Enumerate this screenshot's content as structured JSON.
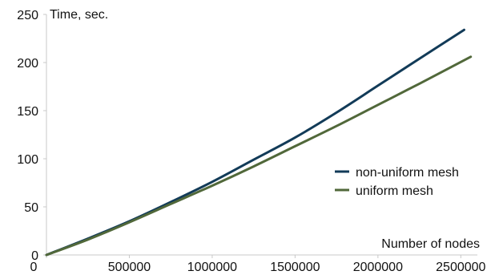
{
  "chart_data": {
    "type": "line",
    "ylabel": "Time, sec.",
    "xlabel": "Number of nodes",
    "xlim": [
      0,
      2600000
    ],
    "ylim": [
      0,
      250
    ],
    "x_ticks": [
      0,
      500000,
      1000000,
      1500000,
      2000000,
      2500000
    ],
    "x_tick_labels": [
      "0",
      "500000",
      "1000000",
      "1500000",
      "2000000",
      "2500000"
    ],
    "y_ticks": [
      0,
      50,
      100,
      150,
      200,
      250
    ],
    "y_tick_labels": [
      "0",
      "50",
      "100",
      "150",
      "200",
      "250"
    ],
    "grid": false,
    "legend_position": "right",
    "series": [
      {
        "name": "non-uniform mesh",
        "color": "#123b58",
        "x": [
          0,
          250000,
          500000,
          750000,
          1000000,
          1250000,
          1500000,
          1750000,
          2000000,
          2250000,
          2520000
        ],
        "y": [
          0,
          17,
          35,
          55,
          76,
          99,
          122,
          148,
          176,
          204,
          234
        ]
      },
      {
        "name": "uniform mesh",
        "color": "#51683a",
        "x": [
          0,
          250000,
          500000,
          750000,
          1000000,
          1250000,
          1500000,
          1750000,
          2000000,
          2250000,
          2560000
        ],
        "y": [
          0,
          16,
          34,
          53,
          72,
          92,
          113,
          134,
          156,
          178,
          206
        ]
      }
    ]
  }
}
